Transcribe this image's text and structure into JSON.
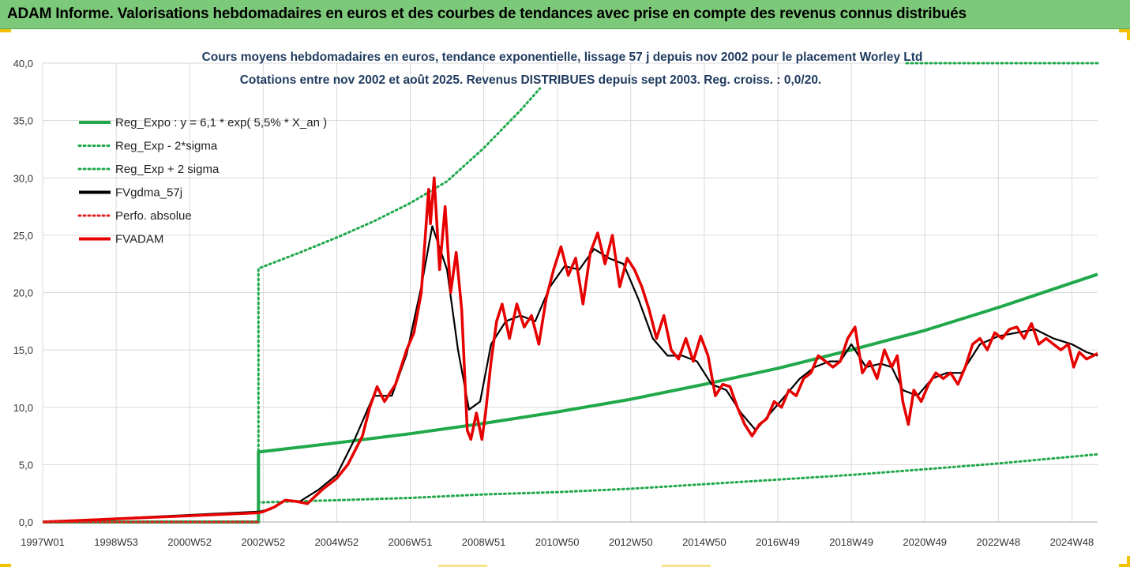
{
  "banner": {
    "text": "ADAM Informe. Valorisations hebdomadaires en euros et des courbes de tendances avec prise en compte des revenus connus distribués"
  },
  "chart_data": {
    "type": "line",
    "title": "Cours moyens hebdomadaires en euros, tendance exponentielle, lissage 57 j depuis nov 2002  pour le placement Worley Ltd",
    "subtitle": "Cotations entre nov 2002 et août 2025.  Revenus DISTRIBUES depuis sept 2003.  Reg. croiss. : 0,0/20.",
    "xlabel": "",
    "ylabel": "",
    "ylim": [
      0,
      40
    ],
    "yticks": [
      "0,0",
      "5,0",
      "10,0",
      "15,0",
      "20,0",
      "25,0",
      "30,0",
      "35,0",
      "40,0"
    ],
    "xlim": [
      1997.0,
      2025.7
    ],
    "xticks": [
      {
        "label": "1997W01",
        "year": 1997.0
      },
      {
        "label": "1998W53",
        "year": 1999.0
      },
      {
        "label": "2000W52",
        "year": 2001.0
      },
      {
        "label": "2002W52",
        "year": 2003.0
      },
      {
        "label": "2004W52",
        "year": 2005.0
      },
      {
        "label": "2006W51",
        "year": 2007.0
      },
      {
        "label": "2008W51",
        "year": 2009.0
      },
      {
        "label": "2010W50",
        "year": 2011.0
      },
      {
        "label": "2012W50",
        "year": 2013.0
      },
      {
        "label": "2014W50",
        "year": 2015.0
      },
      {
        "label": "2016W49",
        "year": 2017.0
      },
      {
        "label": "2018W49",
        "year": 2019.0
      },
      {
        "label": "2020W49",
        "year": 2021.0
      },
      {
        "label": "2022W48",
        "year": 2023.0
      },
      {
        "label": "2024W48",
        "year": 2025.0
      }
    ],
    "grid": true,
    "legend_position": "top-left",
    "series": [
      {
        "name": "Reg_Expo : y = 6,1 * exp( 5,5% *  X_an )",
        "color": "#20a84a",
        "style": "solid",
        "x": [
          1997.0,
          2002.87,
          2002.87,
          2005,
          2007,
          2009,
          2011,
          2013,
          2015,
          2017,
          2019,
          2021,
          2023,
          2025.7
        ],
        "y": [
          0,
          0,
          6.1,
          6.9,
          7.7,
          8.6,
          9.6,
          10.7,
          12.0,
          13.4,
          15.0,
          16.7,
          18.7,
          21.6
        ]
      },
      {
        "name": "Reg_Exp - 2*sigma",
        "color": "#20a84a",
        "style": "dotted",
        "x": [
          2002.87,
          2002.87,
          2005,
          2007,
          2009,
          2011,
          2013,
          2015,
          2017,
          2019,
          2021,
          2023,
          2025.7
        ],
        "y": [
          0,
          1.7,
          1.9,
          2.1,
          2.4,
          2.6,
          2.9,
          3.3,
          3.7,
          4.1,
          4.6,
          5.1,
          5.9
        ]
      },
      {
        "name": "Reg_Exp + 2 sigma",
        "color": "#20a84a",
        "style": "dotted",
        "x": [
          2002.87,
          2002.87,
          2004,
          2005,
          2006,
          2007,
          2008,
          2009,
          2010,
          2010.53
        ],
        "y": [
          0,
          22.1,
          23.5,
          24.8,
          26.2,
          27.8,
          29.7,
          32.6,
          35.9,
          37.8
        ],
        "clipped_segment": {
          "x": [
            2020.5,
            2025.7
          ],
          "y": [
            40,
            40
          ]
        }
      },
      {
        "name": "FVgdma_57j",
        "color": "#000000",
        "style": "solid",
        "x": [
          1997.0,
          2002.87,
          2003.2,
          2003.6,
          2004.0,
          2004.5,
          2005.0,
          2005.5,
          2006.0,
          2006.5,
          2006.9,
          2007.3,
          2007.6,
          2008.0,
          2008.3,
          2008.6,
          2008.9,
          2009.2,
          2009.6,
          2010.0,
          2010.4,
          2010.8,
          2011.2,
          2011.6,
          2012.0,
          2012.4,
          2012.8,
          2013.2,
          2013.6,
          2014.0,
          2014.4,
          2014.8,
          2015.2,
          2015.6,
          2016.0,
          2016.4,
          2016.8,
          2017.2,
          2017.6,
          2018.0,
          2018.4,
          2018.7,
          2019.0,
          2019.4,
          2019.8,
          2020.1,
          2020.4,
          2020.8,
          2021.2,
          2021.6,
          2022.0,
          2022.5,
          2023.0,
          2023.5,
          2024.0,
          2024.5,
          2025.0,
          2025.4,
          2025.7
        ],
        "y": [
          0,
          0.9,
          1.1,
          1.9,
          1.8,
          2.8,
          4.1,
          7.3,
          11.0,
          11.0,
          14.6,
          20.5,
          25.8,
          22.0,
          15.0,
          9.8,
          10.5,
          15.5,
          17.5,
          18.0,
          17.5,
          20.5,
          22.3,
          22.0,
          23.8,
          23.0,
          22.5,
          19.5,
          16.0,
          14.5,
          14.5,
          14.0,
          12.0,
          11.5,
          9.5,
          8.0,
          9.5,
          11.0,
          12.5,
          13.5,
          14.0,
          14.0,
          15.5,
          13.5,
          13.8,
          13.5,
          11.5,
          11.0,
          12.5,
          13.0,
          13.0,
          15.5,
          16.2,
          16.5,
          16.8,
          16.0,
          15.5,
          14.8,
          14.5
        ]
      },
      {
        "name": "Perfo. absolue",
        "color": "#e02020",
        "style": "dotted",
        "x": [
          1997.0,
          2002.87
        ],
        "y": [
          0,
          0
        ]
      },
      {
        "name": "FVADAM",
        "color": "#e60000",
        "style": "solid",
        "x": [
          1997.0,
          2002.87,
          2003.0,
          2003.3,
          2003.6,
          2003.9,
          2004.2,
          2004.6,
          2005.0,
          2005.3,
          2005.7,
          2005.9,
          2006.1,
          2006.3,
          2006.6,
          2006.9,
          2007.1,
          2007.3,
          2007.5,
          2007.55,
          2007.65,
          2007.8,
          2007.95,
          2008.1,
          2008.25,
          2008.4,
          2008.55,
          2008.65,
          2008.8,
          2008.95,
          2009.05,
          2009.2,
          2009.35,
          2009.5,
          2009.7,
          2009.9,
          2010.1,
          2010.3,
          2010.5,
          2010.7,
          2010.9,
          2011.1,
          2011.3,
          2011.5,
          2011.7,
          2011.9,
          2012.1,
          2012.3,
          2012.5,
          2012.7,
          2012.9,
          2013.1,
          2013.3,
          2013.5,
          2013.7,
          2013.9,
          2014.1,
          2014.3,
          2014.5,
          2014.7,
          2014.9,
          2015.1,
          2015.3,
          2015.5,
          2015.7,
          2015.9,
          2016.1,
          2016.3,
          2016.5,
          2016.7,
          2016.9,
          2017.1,
          2017.3,
          2017.5,
          2017.7,
          2017.9,
          2018.1,
          2018.3,
          2018.5,
          2018.7,
          2018.9,
          2019.1,
          2019.3,
          2019.5,
          2019.7,
          2019.9,
          2020.1,
          2020.25,
          2020.4,
          2020.55,
          2020.7,
          2020.9,
          2021.1,
          2021.3,
          2021.5,
          2021.7,
          2021.9,
          2022.1,
          2022.3,
          2022.5,
          2022.7,
          2022.9,
          2023.1,
          2023.3,
          2023.5,
          2023.7,
          2023.9,
          2024.1,
          2024.3,
          2024.5,
          2024.7,
          2024.9,
          2025.05,
          2025.2,
          2025.4,
          2025.7
        ],
        "y": [
          0,
          0.8,
          0.9,
          1.3,
          1.9,
          1.8,
          1.6,
          2.8,
          3.8,
          5.0,
          7.5,
          10.0,
          11.8,
          10.5,
          12.0,
          15.0,
          16.5,
          20.0,
          29.0,
          26.0,
          30.0,
          22.0,
          27.5,
          20.0,
          23.5,
          18.5,
          8.0,
          7.2,
          9.5,
          7.2,
          9.5,
          14.0,
          17.5,
          19.0,
          16.0,
          19.0,
          17.0,
          18.0,
          15.5,
          19.5,
          22.0,
          24.0,
          21.5,
          23.0,
          19.0,
          23.5,
          25.2,
          22.5,
          25.0,
          20.5,
          23.0,
          22.0,
          20.5,
          18.5,
          16.0,
          18.0,
          15.0,
          14.2,
          16.0,
          14.0,
          16.2,
          14.5,
          11.0,
          12.0,
          11.8,
          10.0,
          8.5,
          7.5,
          8.5,
          9.0,
          10.5,
          10.0,
          11.5,
          11.0,
          12.5,
          13.0,
          14.5,
          14.0,
          13.5,
          14.0,
          16.0,
          17.0,
          13.0,
          14.0,
          12.5,
          15.0,
          13.5,
          14.5,
          10.5,
          8.5,
          11.5,
          10.5,
          12.0,
          13.0,
          12.5,
          13.0,
          12.0,
          13.5,
          15.5,
          16.0,
          15.0,
          16.5,
          16.0,
          16.8,
          17.0,
          16.0,
          17.3,
          15.5,
          16.0,
          15.5,
          15.0,
          15.5,
          13.5,
          14.8,
          14.2,
          14.7
        ]
      }
    ]
  }
}
